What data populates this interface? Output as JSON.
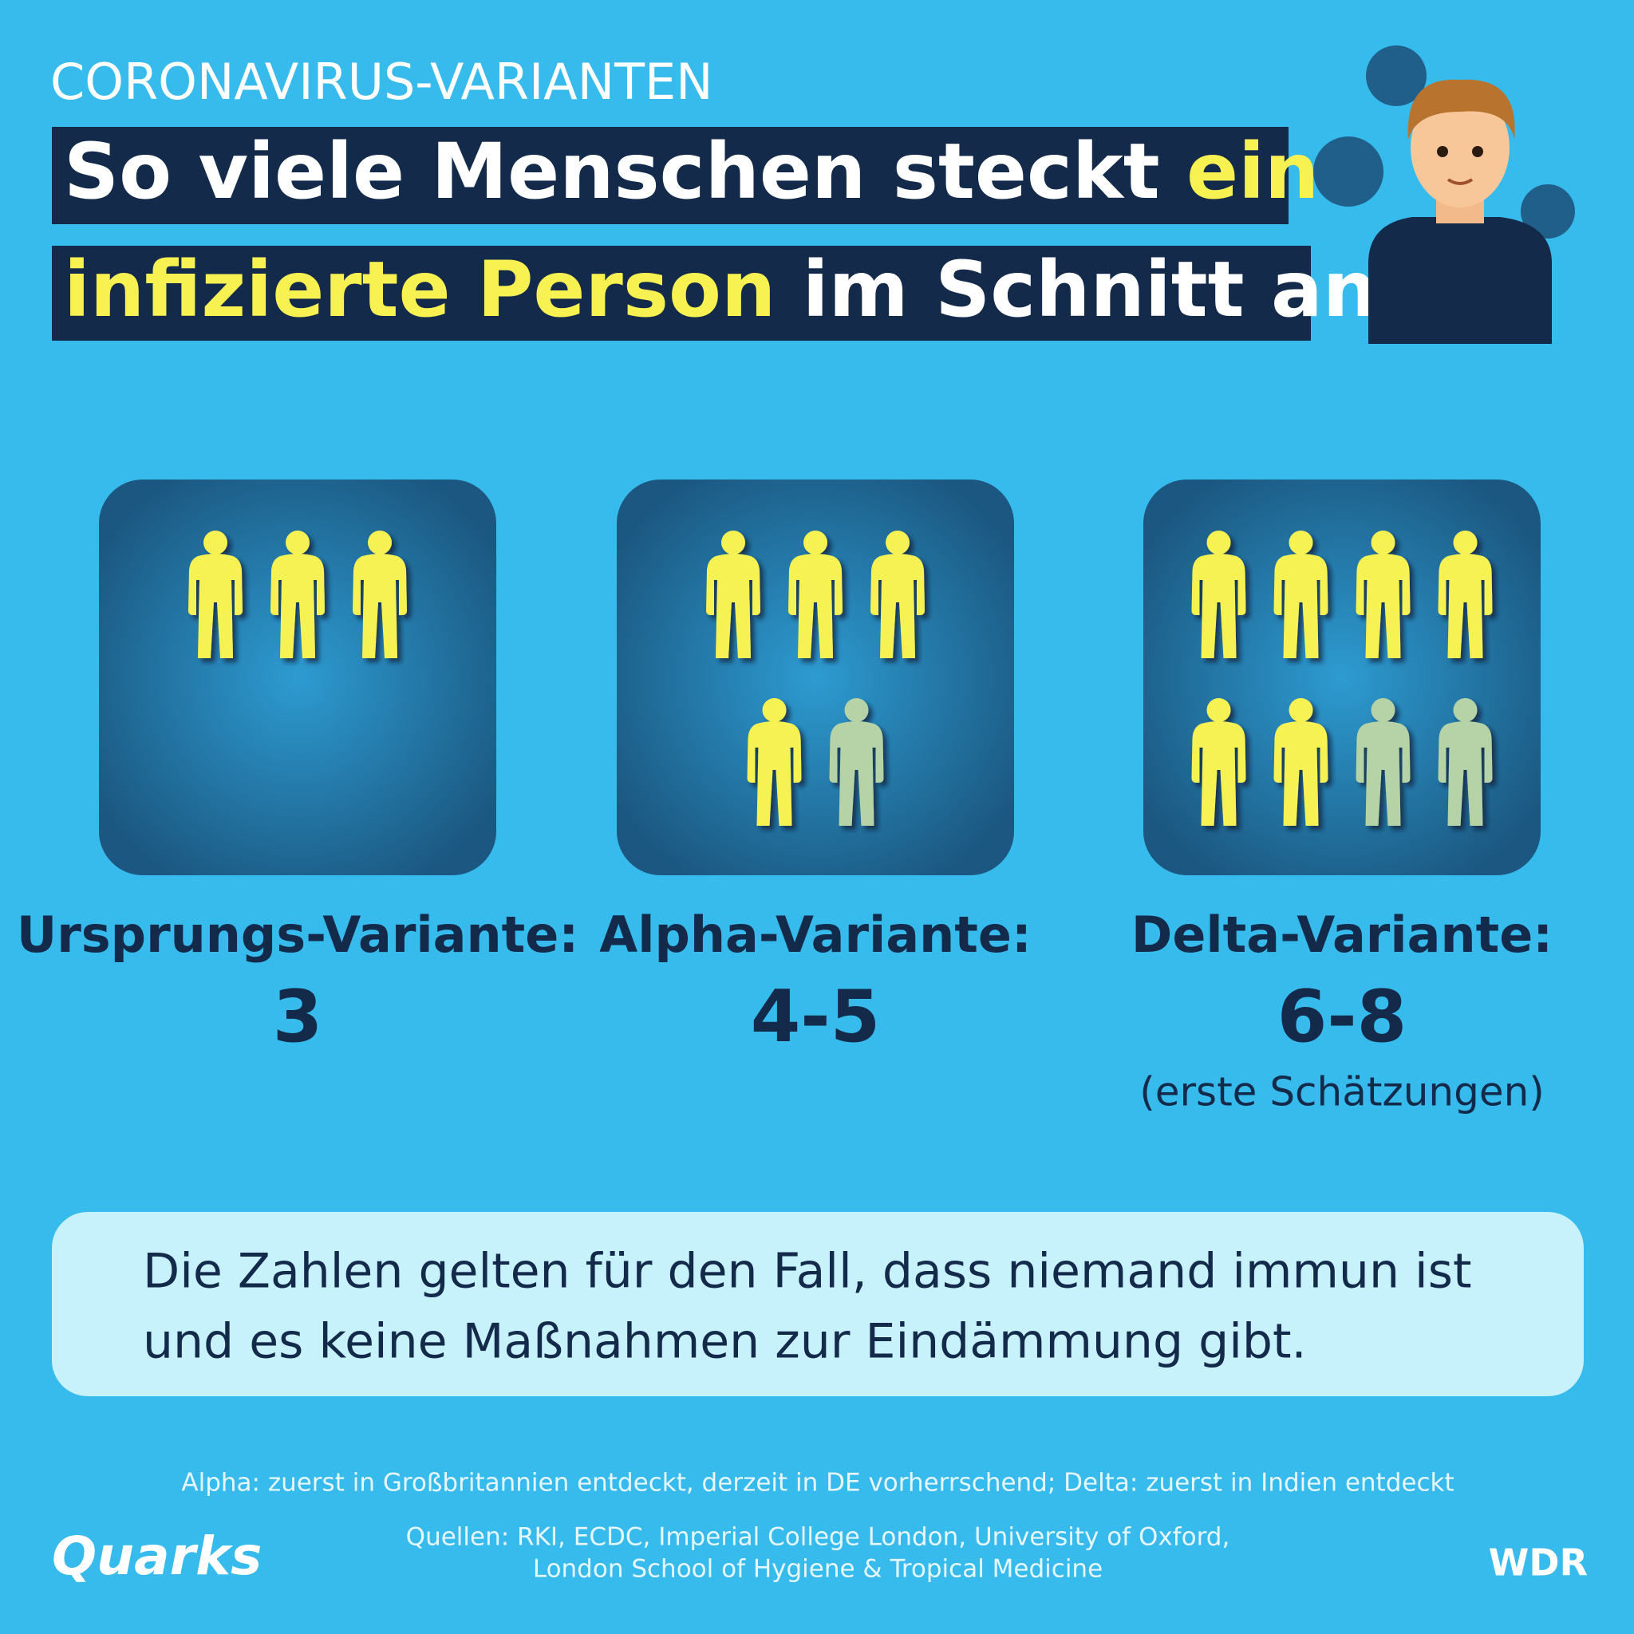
{
  "header": {
    "kicker": "CORONAVIRUS-VARIANTEN",
    "title": {
      "line1": [
        "So viele Menschen steckt",
        "eine"
      ],
      "line2": [
        "infizierte Person",
        "im Schnitt an"
      ]
    }
  },
  "variants": [
    {
      "name": "Ursprungs-Variante:",
      "value_label": "3",
      "min": 3,
      "max": 3
    },
    {
      "name": "Alpha-Variante:",
      "value_label": "4-5",
      "min": 4,
      "max": 5
    },
    {
      "name": "Delta-Variante:",
      "value_label": "6-8",
      "min": 6,
      "max": 8,
      "note": "(erste Schätzungen)"
    }
  ],
  "note": [
    "Die Zahlen gelten für den Fall, dass niemand immun ist",
    "und es keine Maßnahmen zur Eindämmung gibt."
  ],
  "footnote": "Alpha: zuerst in Großbritannien entdeckt, derzeit in DE vorherrschend; Delta: zuerst in Indien entdeckt",
  "sources": [
    "Quellen: RKI, ECDC, Imperial College London, University of Oxford,",
    "London School of Hygiene & Tropical Medicine"
  ],
  "logos": {
    "left": "Quarks",
    "right": "WDR"
  }
}
